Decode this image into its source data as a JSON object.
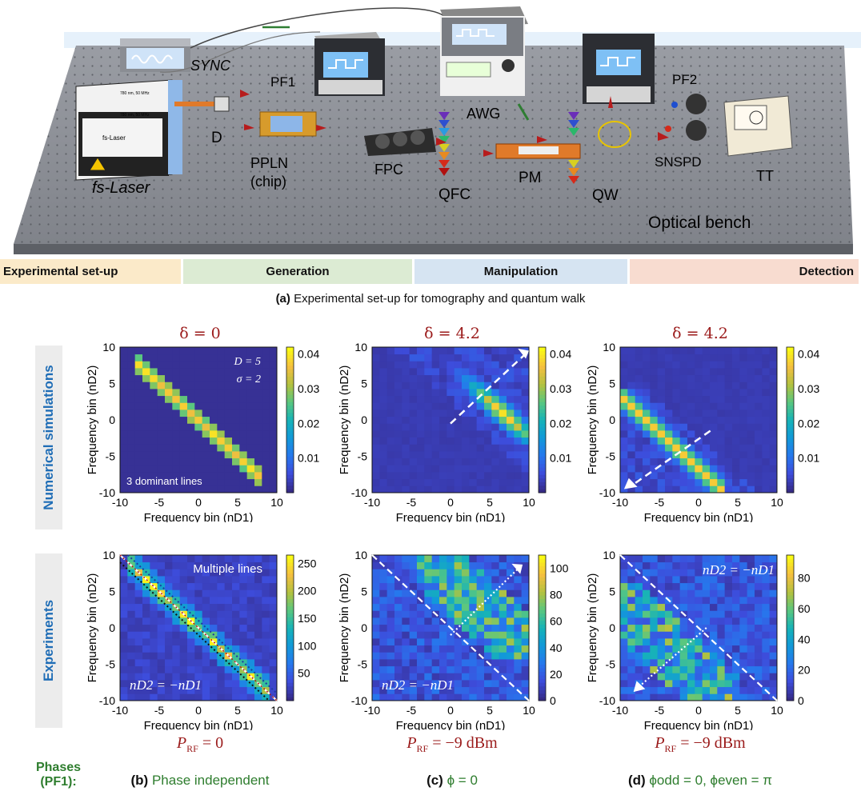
{
  "setup": {
    "labels": {
      "sync": "SYNC",
      "pf1": "PF1",
      "awg": "AWG",
      "pf2": "PF2",
      "d": "D",
      "pplnLine1": "PPLN",
      "pplnLine2": "(chip)",
      "fpc": "FPC",
      "qfc": "QFC",
      "pm": "PM",
      "qw": "QW",
      "snspd": "SNSPD",
      "tt": "TT",
      "laser": "fs-Laser",
      "bench": "Optical bench",
      "laserBoxBrand": "fs-Laser",
      "laserTopLabel": "780 nm, 50 MHz",
      "laserTopLabel2": "780 nm, 50 MHz"
    },
    "colors": {
      "benchTop": "#8e9198",
      "benchSide": "#5d6066",
      "arrowRed": "#b71c1c",
      "arrowGreen": "#2e7d32"
    }
  },
  "stages": [
    {
      "label": "Experimental set-up",
      "bg": "#fbeac9",
      "align": "left"
    },
    {
      "label": "Generation",
      "bg": "#dcebd3",
      "align": "center"
    },
    {
      "label": "Manipulation",
      "bg": "#d6e4f2",
      "align": "center"
    },
    {
      "label": "Detection",
      "bg": "#f8dcd0",
      "align": "right"
    }
  ],
  "caption": {
    "tag": "(a)",
    "text": "Experimental set-up for tomography and quantum walk"
  },
  "rows": {
    "sim": "Numerical simulations",
    "exp": "Experiments"
  },
  "phases": {
    "label1": "Phases",
    "label2": "(PF1):"
  },
  "columns": [
    {
      "title": "δ = 0",
      "prf": "P",
      "prfSub": "RF",
      "prfVal": " = 0",
      "phaseTag": "(b)",
      "phaseText": "Phase independent"
    },
    {
      "title": "δ = 4.2",
      "prf": "P",
      "prfSub": "RF",
      "prfVal": " = −9 dBm",
      "phaseTag": "(c)",
      "phaseText": "ϕ = 0"
    },
    {
      "title": "δ = 4.2",
      "prf": "P",
      "prfSub": "RF",
      "prfVal": " = −9 dBm",
      "phaseTag": "(d)",
      "phaseText": "ϕodd = 0, ϕeven = π"
    }
  ],
  "chart_data": [
    {
      "type": "heatmap",
      "panel": "sim-b",
      "xlabel": "Frequency bin (nD1)",
      "ylabel": "Frequency bin (nD2)",
      "xlim": [
        -10,
        10
      ],
      "ylim": [
        -10,
        10
      ],
      "xticks": [
        -10,
        -5,
        0,
        5,
        10
      ],
      "yticks": [
        -10,
        -5,
        0,
        5,
        10
      ],
      "colorbar": {
        "range": [
          0,
          0.042
        ],
        "ticks": [
          "0.01",
          "0.02",
          "0.03",
          "0.04"
        ]
      },
      "annotations": [
        "D = 5",
        "σ = 2",
        "3 dominant lines"
      ],
      "pattern": "anti-diagonal band n2 = −n1, n1 from −8 to 8"
    },
    {
      "type": "heatmap",
      "panel": "sim-c",
      "xlabel": "Frequency bin (nD1)",
      "ylabel": "Frequency bin (nD2)",
      "xlim": [
        -10,
        10
      ],
      "ylim": [
        -10,
        10
      ],
      "xticks": [
        -10,
        -5,
        0,
        5,
        10
      ],
      "yticks": [
        -10,
        -5,
        0,
        5,
        10
      ],
      "colorbar": {
        "range": [
          0,
          0.042
        ],
        "ticks": [
          "0.01",
          "0.02",
          "0.03",
          "0.04"
        ]
      },
      "pattern": "anti-diagonal band shifted toward positive bins (n1 from 0 to 10)",
      "arrow": "dashed, toward upper right"
    },
    {
      "type": "heatmap",
      "panel": "sim-d",
      "xlabel": "Frequency bin (nD1)",
      "ylabel": "Frequency bin (nD2)",
      "xlim": [
        -10,
        10
      ],
      "ylim": [
        -10,
        10
      ],
      "xticks": [
        -10,
        -5,
        0,
        5,
        10
      ],
      "yticks": [
        -10,
        -5,
        0,
        5,
        10
      ],
      "colorbar": {
        "range": [
          0,
          0.042
        ],
        "ticks": [
          "0.01",
          "0.02",
          "0.03",
          "0.04"
        ]
      },
      "pattern": "anti-diagonal band shifted toward negative bins (n1 from −10 to 3)",
      "arrow": "dashed, toward lower left"
    },
    {
      "type": "heatmap",
      "panel": "exp-b",
      "xlabel": "Frequency bin (nD1)",
      "ylabel": "Frequency bin (nD2)",
      "xlim": [
        -10,
        10
      ],
      "ylim": [
        -10,
        10
      ],
      "xticks": [
        -10,
        -5,
        0,
        5,
        10
      ],
      "yticks": [
        -10,
        -5,
        0,
        5,
        10
      ],
      "colorbar": {
        "range": [
          0,
          265
        ],
        "ticks": [
          "50",
          "100",
          "150",
          "200",
          "250"
        ]
      },
      "annotations": [
        "Multiple lines",
        "nD2 = −nD1"
      ],
      "pattern": "anti-diagonal with several parallel lines"
    },
    {
      "type": "heatmap",
      "panel": "exp-c",
      "xlabel": "Frequency bin (nD1)",
      "ylabel": "Frequency bin (nD2)",
      "xlim": [
        -10,
        10
      ],
      "ylim": [
        -10,
        10
      ],
      "xticks": [
        -10,
        -5,
        0,
        5,
        10
      ],
      "yticks": [
        -10,
        -5,
        0,
        5,
        10
      ],
      "colorbar": {
        "range": [
          0,
          110
        ],
        "ticks": [
          "0",
          "20",
          "40",
          "60",
          "80",
          "100"
        ]
      },
      "annotations": [
        "nD2 = −nD1"
      ],
      "pattern": "spots above the anti-diagonal toward upper right"
    },
    {
      "type": "heatmap",
      "panel": "exp-d",
      "xlabel": "Frequency bin (nD1)",
      "ylabel": "Frequency bin (nD2)",
      "xlim": [
        -10,
        10
      ],
      "ylim": [
        -10,
        10
      ],
      "xticks": [
        -10,
        -5,
        0,
        5,
        10
      ],
      "yticks": [
        -10,
        -5,
        0,
        5,
        10
      ],
      "colorbar": {
        "range": [
          0,
          95
        ],
        "ticks": [
          "0",
          "20",
          "40",
          "60",
          "80"
        ]
      },
      "annotations": [
        "nD2 = −nD1"
      ],
      "pattern": "spots below the anti-diagonal toward lower left"
    }
  ]
}
